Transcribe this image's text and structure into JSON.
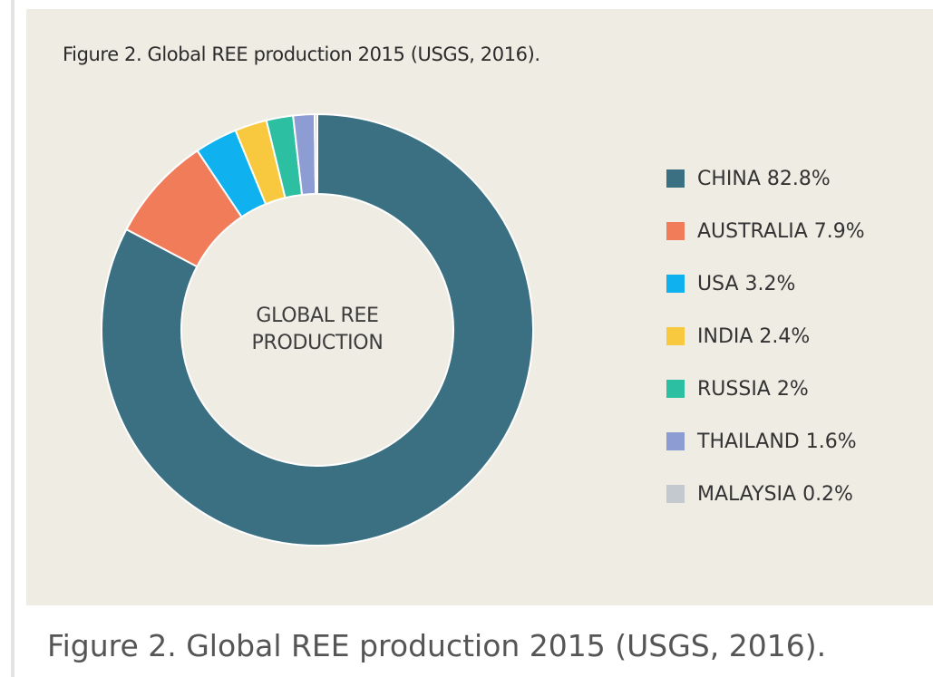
{
  "figure_title": "Figure 2. Global REE production 2015 (USGS, 2016).",
  "caption": "Figure 2. Global REE production 2015 (USGS, 2016).",
  "center_label": {
    "line1": "GLOBAL REE",
    "line2": "PRODUCTION"
  },
  "colors": {
    "panel_bg": "#efece4",
    "hole": "#efece4"
  },
  "chart_data": {
    "type": "pie",
    "title": "Figure 2. Global REE production 2015 (USGS, 2016).",
    "center_label": "GLOBAL REE PRODUCTION",
    "donut": true,
    "legend_position": "right",
    "unit": "%",
    "slices": [
      {
        "label": "CHINA",
        "value": 82.8,
        "legend": "CHINA 82.8%",
        "color": "#3b7083"
      },
      {
        "label": "AUSTRALIA",
        "value": 7.9,
        "legend": "AUSTRALIA 7.9%",
        "color": "#f07c5a"
      },
      {
        "label": "USA",
        "value": 3.2,
        "legend": "USA 3.2%",
        "color": "#0fb1ef"
      },
      {
        "label": "INDIA",
        "value": 2.4,
        "legend": "INDIA 2.4%",
        "color": "#f8c93f"
      },
      {
        "label": "RUSSIA",
        "value": 2,
        "legend": "RUSSIA 2%",
        "color": "#2cbfa1"
      },
      {
        "label": "THAILAND",
        "value": 1.6,
        "legend": "THAILAND 1.6%",
        "color": "#8e9cd4"
      },
      {
        "label": "MALAYSIA",
        "value": 0.2,
        "legend": "MALAYSIA 0.2%",
        "color": "#c3c9cf"
      }
    ]
  }
}
